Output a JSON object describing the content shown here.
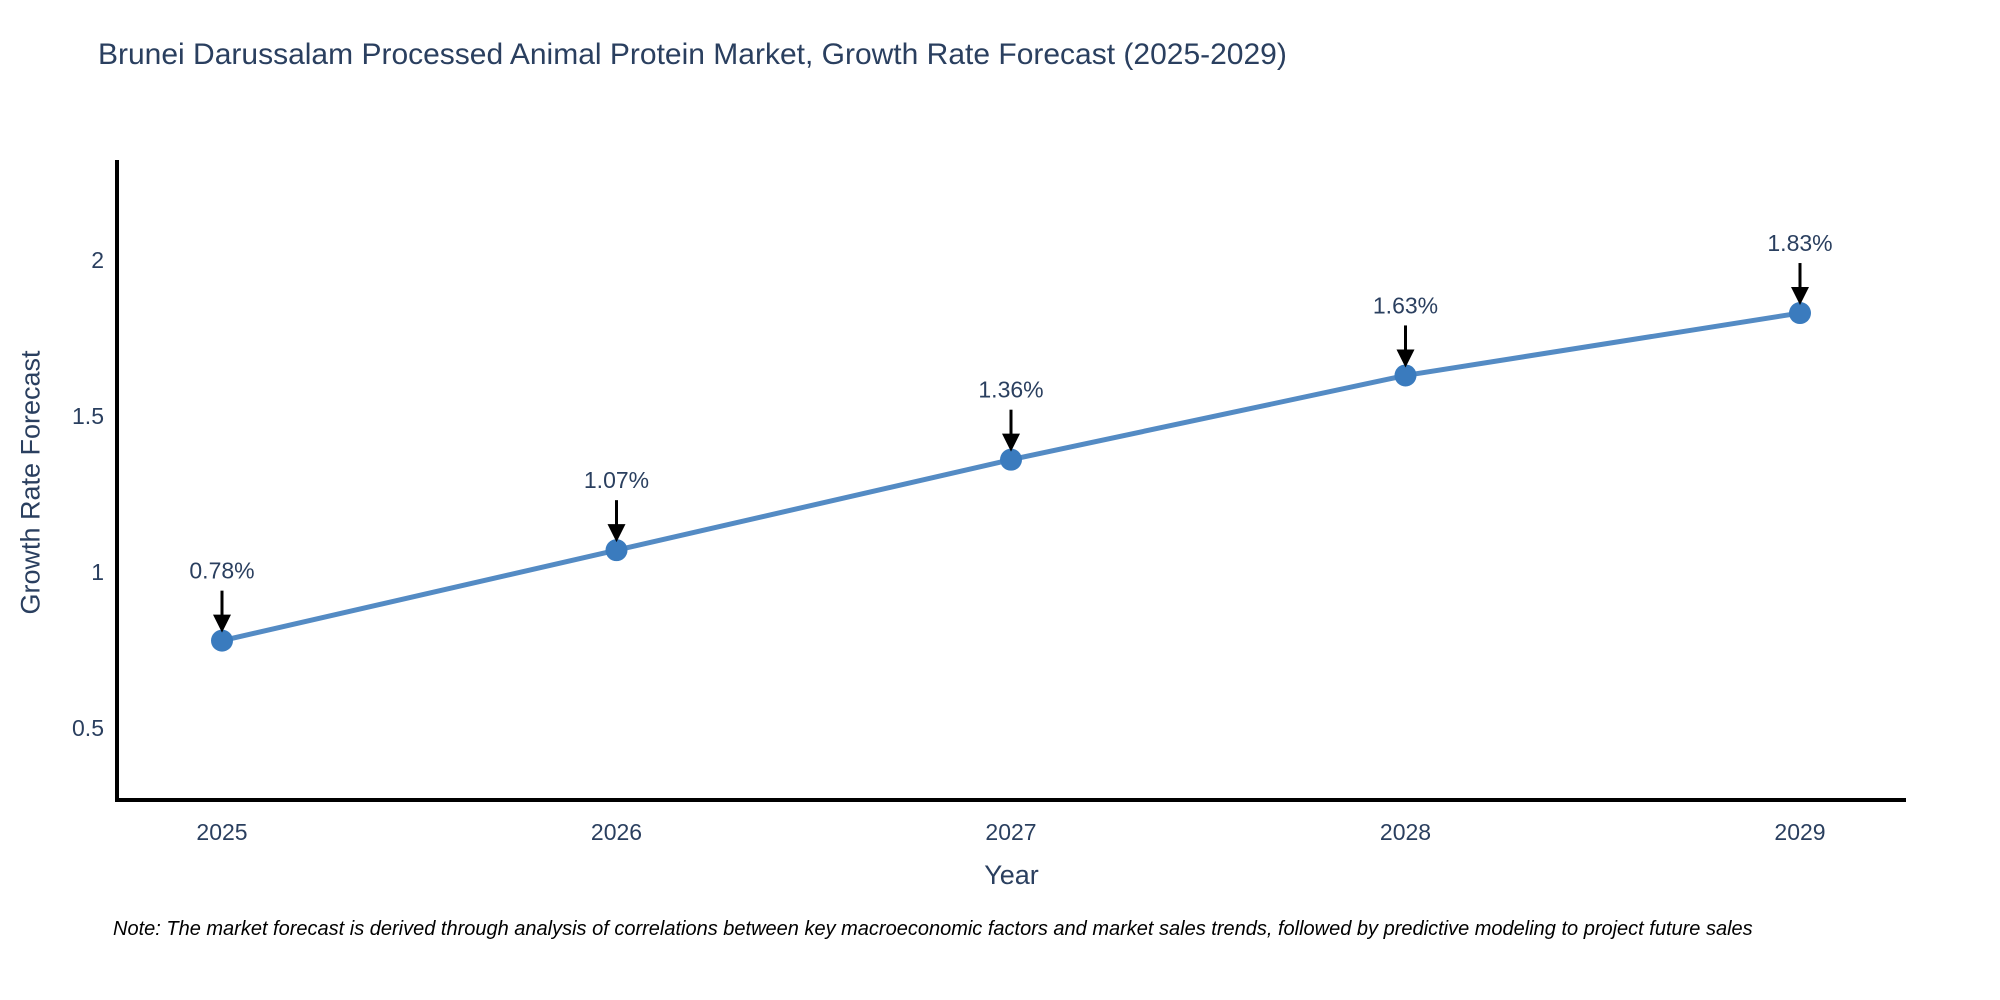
{
  "title": "Brunei Darussalam Processed Animal Protein Market, Growth Rate Forecast (2025-2029)",
  "note": "Note: The market forecast is derived through analysis of correlations between key macroeconomic factors and market sales trends, followed by predictive modeling to project future sales",
  "chart_data": {
    "type": "line",
    "title": "Brunei Darussalam Processed Animal Protein Market, Growth Rate Forecast (2025-2029)",
    "xlabel": "Year",
    "ylabel": "Growth Rate Forecast",
    "categories": [
      "2025",
      "2026",
      "2027",
      "2028",
      "2029"
    ],
    "values": [
      0.78,
      1.07,
      1.36,
      1.63,
      1.83
    ],
    "point_labels": [
      "0.78%",
      "1.07%",
      "1.36%",
      "1.63%",
      "1.83%"
    ],
    "yticks": [
      0.5,
      1,
      1.5,
      2
    ],
    "ylim": [
      0.27,
      2.33
    ],
    "grid": false,
    "legend_position": "none",
    "colors": {
      "line": "#548bc4",
      "marker": "#3a7bbe",
      "axis": "#000000",
      "text": "#2a3f5f",
      "annotation_arrow": "#000000"
    }
  }
}
